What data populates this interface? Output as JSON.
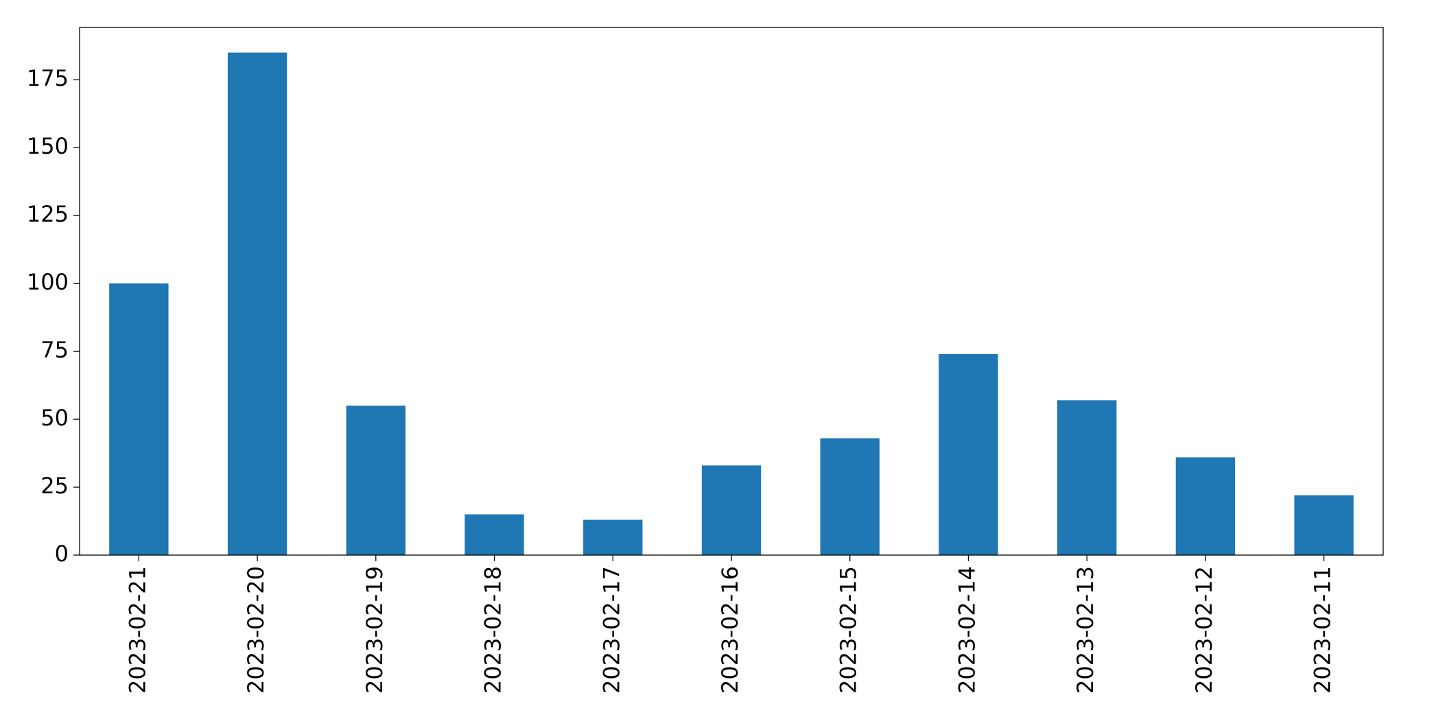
{
  "chart_data": {
    "type": "bar",
    "categories": [
      "2023-02-21",
      "2023-02-20",
      "2023-02-19",
      "2023-02-18",
      "2023-02-17",
      "2023-02-16",
      "2023-02-15",
      "2023-02-14",
      "2023-02-13",
      "2023-02-12",
      "2023-02-11"
    ],
    "values": [
      100,
      185,
      55,
      15,
      13,
      33,
      43,
      74,
      57,
      36,
      22
    ],
    "color": "#1f77b4",
    "ylim": [
      0,
      194.25
    ],
    "yticks": [
      0,
      25,
      50,
      75,
      100,
      125,
      150,
      175
    ],
    "grid": false
  }
}
